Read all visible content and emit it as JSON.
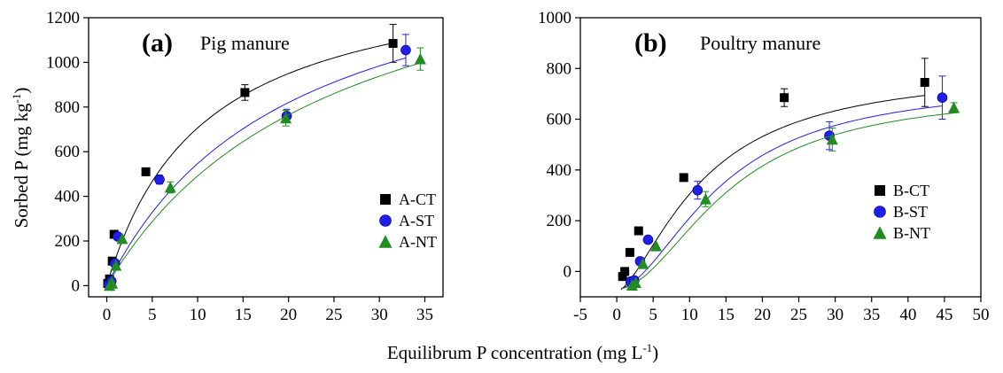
{
  "colors": {
    "CT": "#000000",
    "ST": "#1f1fe6",
    "NT": "#228b22"
  },
  "shared": {
    "ylabel": "Sorbed P (mg kg",
    "ylabel_sup": "-1",
    "ylabel_close": ")",
    "xlabel": "Equilibrum P concentration (mg L",
    "xlabel_sup": "-1",
    "xlabel_close": ")"
  },
  "chart_data": [
    {
      "type": "scatter",
      "panel_label": "(a)",
      "subtitle": "Pig manure",
      "xlim": [
        -2,
        37
      ],
      "ylim": [
        -50,
        1200
      ],
      "xticks": [
        0,
        5,
        10,
        15,
        20,
        25,
        30,
        35
      ],
      "yticks": [
        0,
        200,
        400,
        600,
        800,
        1000,
        1200
      ],
      "legend_position": "right-middle",
      "series": [
        {
          "name": "A-CT",
          "key": "CT",
          "marker": "square",
          "x": [
            0.1,
            0.3,
            0.6,
            0.8,
            4.3,
            15.2,
            31.5
          ],
          "y": [
            10,
            30,
            110,
            230,
            510,
            865,
            1085
          ],
          "err": [
            0,
            0,
            0,
            0,
            0,
            35,
            85
          ],
          "fit": {
            "smax": 1450,
            "k": 0.095
          }
        },
        {
          "name": "A-ST",
          "key": "ST",
          "marker": "circle",
          "x": [
            0.2,
            0.5,
            0.9,
            1.2,
            5.8,
            19.8,
            32.9
          ],
          "y": [
            5,
            20,
            100,
            220,
            475,
            760,
            1055
          ],
          "err": [
            0,
            0,
            0,
            0,
            20,
            30,
            70
          ],
          "fit": {
            "smax": 1640,
            "k": 0.05
          }
        },
        {
          "name": "A-NT",
          "key": "NT",
          "marker": "triangle",
          "x": [
            0.3,
            0.6,
            1.0,
            1.7,
            7.0,
            19.7,
            34.5
          ],
          "y": [
            0,
            10,
            90,
            210,
            440,
            750,
            1015
          ],
          "err": [
            0,
            0,
            0,
            0,
            25,
            35,
            50
          ],
          "fit": {
            "smax": 1720,
            "k": 0.04
          }
        }
      ]
    },
    {
      "type": "scatter",
      "panel_label": "(b)",
      "subtitle": "Poultry manure",
      "xlim": [
        -5,
        50
      ],
      "ylim": [
        -100,
        1000
      ],
      "xticks": [
        -5,
        0,
        5,
        10,
        15,
        20,
        25,
        30,
        35,
        40,
        45,
        50
      ],
      "yticks": [
        0,
        200,
        400,
        600,
        800,
        1000
      ],
      "legend_position": "bottom-right",
      "series": [
        {
          "name": "B-CT",
          "key": "CT",
          "marker": "square",
          "x": [
            0.8,
            1.1,
            1.8,
            3.0,
            9.2,
            23.0,
            42.3
          ],
          "y": [
            -20,
            0,
            75,
            160,
            370,
            685,
            745
          ],
          "err": [
            0,
            0,
            0,
            0,
            0,
            35,
            95
          ],
          "fit": {
            "smax": 800,
            "k": 0.085,
            "n": 1.55,
            "b": -80
          }
        },
        {
          "name": "B-ST",
          "key": "ST",
          "marker": "circle",
          "x": [
            1.9,
            2.4,
            3.2,
            4.3,
            11.1,
            29.2,
            44.7
          ],
          "y": [
            -40,
            -35,
            40,
            125,
            320,
            535,
            685
          ],
          "err": [
            0,
            0,
            0,
            0,
            35,
            55,
            85
          ],
          "fit": {
            "smax": 745,
            "k": 0.07,
            "n": 1.8,
            "b": -70
          }
        },
        {
          "name": "B-NT",
          "key": "NT",
          "marker": "triangle",
          "x": [
            2.1,
            2.6,
            3.6,
            5.4,
            12.2,
            29.6,
            46.3
          ],
          "y": [
            -55,
            -45,
            30,
            100,
            285,
            520,
            645
          ],
          "err": [
            0,
            0,
            0,
            0,
            30,
            45,
            20
          ],
          "fit": {
            "smax": 710,
            "k": 0.065,
            "n": 1.9,
            "b": -70
          }
        }
      ]
    }
  ]
}
